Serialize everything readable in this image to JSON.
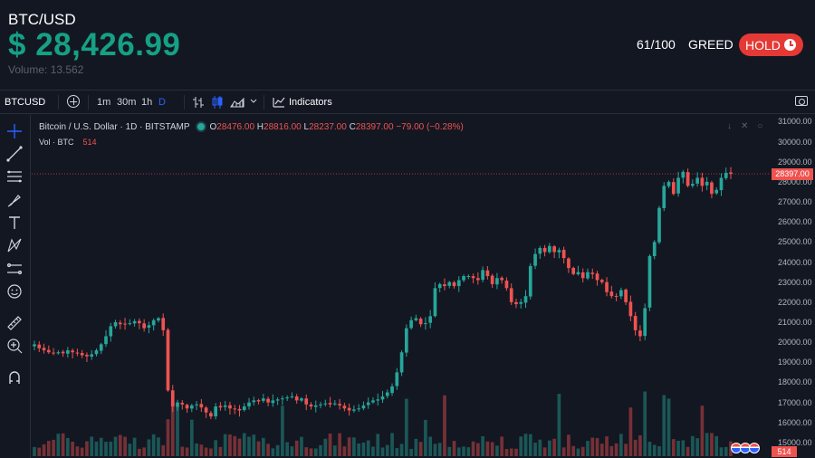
{
  "header": {
    "pair": "BTC/USD",
    "price": "$ 28,426.99",
    "volume": "Volume: 13.562",
    "score": "61/100",
    "sentiment": "GREED",
    "hold_label": "HOLD"
  },
  "toolbar": {
    "symbol": "BTCUSD",
    "timeframes": [
      "1m",
      "30m",
      "1h",
      "D"
    ],
    "indicators_label": "Indicators",
    "icons": [
      "plus-circle-icon",
      "bar-style-icon",
      "candle-style-icon",
      "area-style-icon",
      "chevron-down-icon",
      "indicators-icon",
      "camera-icon"
    ]
  },
  "left_tools": [
    "crosshair-icon",
    "trend-line-icon",
    "fib-icon",
    "brush-icon",
    "text-icon",
    "pattern-icon",
    "prediction-icon",
    "emoji-icon",
    "ruler-icon",
    "zoom-icon",
    "magnet-icon"
  ],
  "legend": {
    "title": "Bitcoin / U.S. Dollar · 1D · BITSTAMP",
    "o_label": "O",
    "o": "28476.00",
    "h_label": "H",
    "h": "28816.00",
    "l_label": "L",
    "l": "28237.00",
    "c_label": "C",
    "c": "28397.00",
    "change": "−79.00 (−0.28%)",
    "vol_label": "Vol · BTC",
    "vol_value": "514"
  },
  "colors": {
    "up": "#26a69a",
    "down": "#ef5350",
    "price_green": "#16a085",
    "hold": "#e53935"
  },
  "chart_data": {
    "type": "candlestick",
    "y_ticks": [
      "31000.00",
      "30000.00",
      "29000.00",
      "28000.00",
      "27000.00",
      "26000.00",
      "25000.00",
      "24000.00",
      "23000.00",
      "22000.00",
      "21000.00",
      "20000.00",
      "19000.00",
      "18000.00",
      "17000.00",
      "16000.00",
      "15000.00"
    ],
    "ylim": [
      14500,
      31200
    ],
    "last_price_tag": "28397.00",
    "volume_tag": "514",
    "close_path": [
      19900,
      19700,
      19600,
      19500,
      19450,
      19500,
      19450,
      19600,
      19500,
      19450,
      19350,
      19300,
      19400,
      19600,
      19900,
      20300,
      20800,
      21000,
      20900,
      20900,
      20950,
      21050,
      20950,
      20700,
      20850,
      21100,
      21200,
      20600,
      17600,
      16800,
      17000,
      16900,
      16700,
      16850,
      16900,
      16750,
      16500,
      16300,
      16800,
      16750,
      16850,
      16700,
      16650,
      16600,
      16800,
      17000,
      17100,
      17050,
      17200,
      17000,
      17100,
      17150,
      17200,
      17250,
      17300,
      17100,
      17200,
      16900,
      16800,
      16850,
      16900,
      16950,
      16900,
      16950,
      16850,
      16700,
      16600,
      16650,
      16700,
      16850,
      17000,
      17100,
      17150,
      17300,
      17500,
      17800,
      18500,
      19500,
      20700,
      21100,
      21200,
      20900,
      20950,
      21300,
      22700,
      22900,
      22800,
      23000,
      22800,
      23100,
      23300,
      23300,
      23200,
      23100,
      23600,
      23300,
      22900,
      23200,
      23100,
      22700,
      22000,
      21900,
      22000,
      22300,
      23800,
      24400,
      24700,
      24500,
      24800,
      24500,
      24600,
      24200,
      23700,
      23400,
      23500,
      23200,
      23500,
      23400,
      23100,
      23000,
      22500,
      22300,
      22300,
      22600,
      22000,
      21300,
      20600,
      20300,
      21700,
      24300,
      25000,
      26700,
      27800,
      28000,
      27400,
      28200,
      28500,
      27800,
      27900,
      28200,
      27800,
      28000,
      27400,
      27600,
      28200,
      28450,
      28397
    ],
    "vol_highlight_indices": [
      28,
      29,
      30,
      33,
      52,
      78,
      82,
      86,
      110,
      125,
      128,
      132,
      133,
      140
    ]
  }
}
